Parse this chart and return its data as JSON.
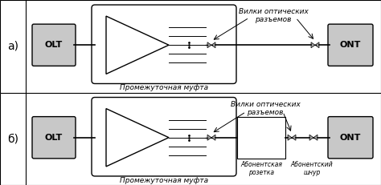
{
  "bg_color": "#ffffff",
  "border_color": "#000000",
  "box_fill": "#c8c8c8",
  "box_text_color": "#000000",
  "line_color": "#000000",
  "panel_a_label": "а)",
  "panel_b_label": "б)",
  "label_olt": "OLT",
  "label_ont": "ONT",
  "label_mufta": "Промежуточная муфта",
  "label_vilki": "Вилки оптических\nразъемов",
  "label_rozetka": "Абонентская\nрозетка",
  "label_shnur": "Абонентский\nшнур",
  "font_size_box": 8,
  "font_size_label": 6.5,
  "font_size_panel": 10
}
